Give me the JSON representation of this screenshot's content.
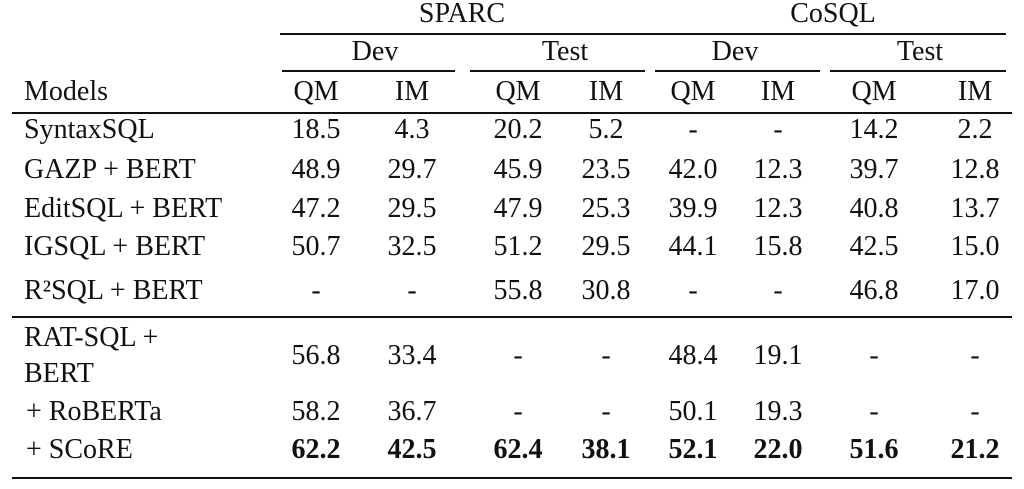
{
  "table": {
    "groups": [
      "SPARC",
      "CoSQL"
    ],
    "splits": [
      "Dev",
      "Test",
      "Dev",
      "Test"
    ],
    "header": [
      "Models",
      "QM",
      "IM",
      "QM",
      "IM",
      "QM",
      "IM",
      "QM",
      "IM"
    ],
    "rows": [
      [
        "SyntaxSQL",
        "18.5",
        "4.3",
        "20.2",
        "5.2",
        "-",
        "-",
        "14.2",
        "2.2"
      ],
      [
        "GAZP + BERT",
        "48.9",
        "29.7",
        "45.9",
        "23.5",
        "42.0",
        "12.3",
        "39.7",
        "12.8"
      ],
      [
        "EditSQL + BERT",
        "47.2",
        "29.5",
        "47.9",
        "25.3",
        "39.9",
        "12.3",
        "40.8",
        "13.7"
      ],
      [
        "IGSQL + BERT",
        "50.7",
        "32.5",
        "51.2",
        "29.5",
        "44.1",
        "15.8",
        "42.5",
        "15.0"
      ],
      [
        "R²SQL + BERT",
        "-",
        "-",
        "55.8",
        "30.8",
        "-",
        "-",
        "46.8",
        "17.0"
      ],
      [
        "RAT-SQL + BERT",
        "56.8",
        "33.4",
        "-",
        "-",
        "48.4",
        "19.1",
        "-",
        "-"
      ],
      [
        "+ RoBERTa",
        "58.2",
        "36.7",
        "-",
        "-",
        "50.1",
        "19.3",
        "-",
        "-"
      ],
      [
        "+ SCoRE",
        "62.2",
        "42.5",
        "62.4",
        "38.1",
        "52.1",
        "22.0",
        "51.6",
        "21.2"
      ]
    ]
  }
}
